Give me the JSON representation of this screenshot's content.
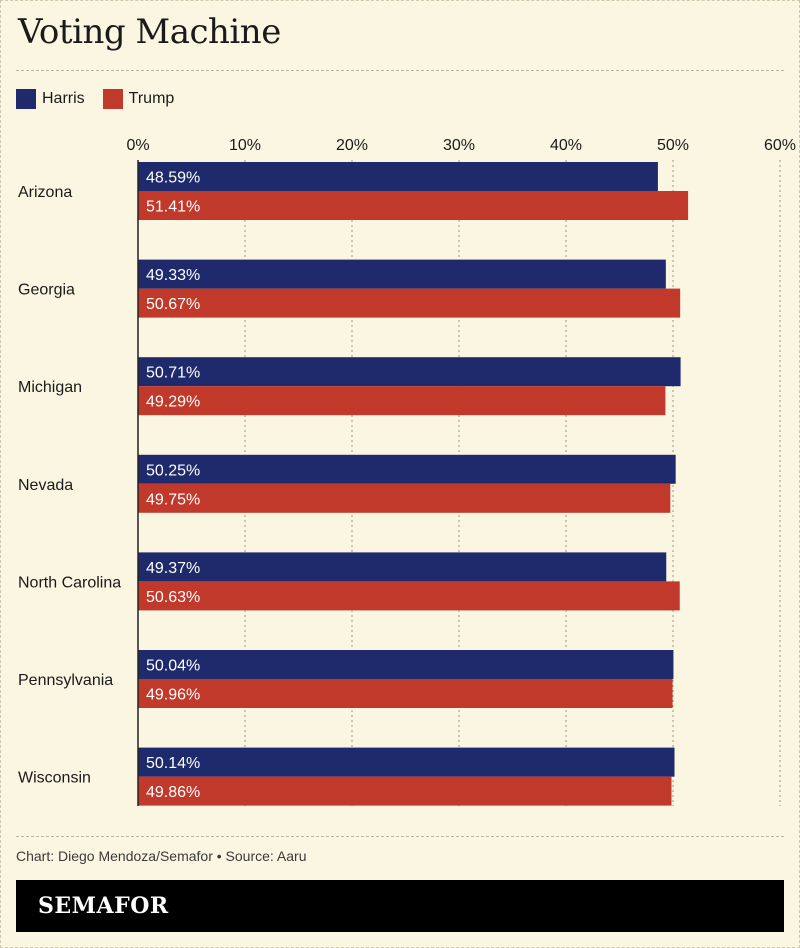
{
  "title": "Voting Machine",
  "legend": [
    {
      "name": "Harris",
      "color": "#1e2a6b"
    },
    {
      "name": "Trump",
      "color": "#c0392b"
    }
  ],
  "footer": {
    "credit": "Chart: Diego Mendoza/Semafor • Source: Aaru",
    "brand": "SEMAFOR"
  },
  "chart_data": {
    "type": "bar",
    "orientation": "horizontal",
    "categories": [
      "Arizona",
      "Georgia",
      "Michigan",
      "Nevada",
      "North Carolina",
      "Pennsylvania",
      "Wisconsin"
    ],
    "series": [
      {
        "name": "Harris",
        "color": "#1e2a6b",
        "values": [
          48.59,
          49.33,
          50.71,
          50.25,
          49.37,
          50.04,
          50.14
        ]
      },
      {
        "name": "Trump",
        "color": "#c0392b",
        "values": [
          51.41,
          50.67,
          49.29,
          49.75,
          50.63,
          49.96,
          49.86
        ]
      }
    ],
    "data_labels": {
      "Harris": [
        "48.59%",
        "49.33%",
        "50.71%",
        "50.25%",
        "49.37%",
        "50.04%",
        "50.14%"
      ],
      "Trump": [
        "51.41%",
        "50.67%",
        "49.29%",
        "49.75%",
        "50.63%",
        "49.96%",
        "49.86%"
      ]
    },
    "xlim": [
      0,
      60
    ],
    "xticks": [
      0,
      10,
      20,
      30,
      40,
      50,
      60
    ],
    "xtick_labels": [
      "0%",
      "10%",
      "20%",
      "30%",
      "40%",
      "50%",
      "60%"
    ],
    "grid": true,
    "legend_position": "top-left"
  }
}
